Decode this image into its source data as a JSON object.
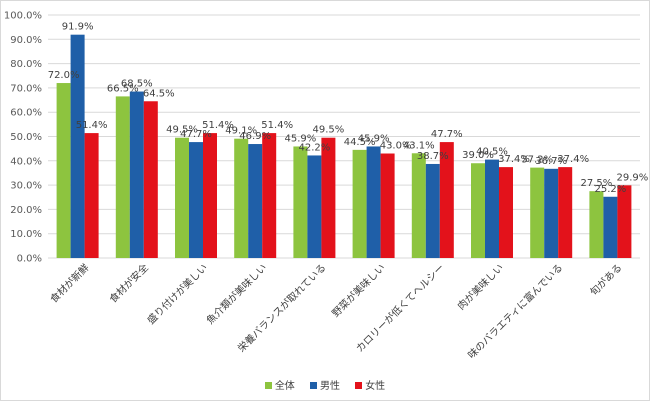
{
  "chart_data": {
    "type": "bar",
    "categories": [
      "食材が新鮮",
      "食材が安全",
      "盛り付けが美しい",
      "魚介類が美味しい",
      "栄養バランスが取れている",
      "野菜が美味しい",
      "カロリーが低くてヘルシー",
      "肉が美味しい",
      "味のバラエティに富んでいる",
      "旬がある"
    ],
    "series": [
      {
        "name": "全体",
        "values": [
          72.0,
          66.5,
          49.5,
          49.1,
          45.9,
          44.5,
          43.1,
          39.0,
          37.2,
          27.5
        ],
        "labels": [
          "72.0%",
          "66.5%",
          "49.5%",
          "49.1%",
          "45.9%",
          "44.5%",
          "43.1%",
          "39.0%",
          "37.2%",
          "27.5%"
        ],
        "color": "#8dc43f"
      },
      {
        "name": "男性",
        "values": [
          91.9,
          68.5,
          47.7,
          46.9,
          42.2,
          45.9,
          38.7,
          40.5,
          36.7,
          25.2
        ],
        "labels": [
          "91.9%",
          "68.5%",
          "47.7%",
          "46.9%",
          "42.2%",
          "45.9%",
          "38.7%",
          "40.5%",
          "36.7%",
          "25.2%"
        ],
        "color": "#1f5fa8"
      },
      {
        "name": "女性",
        "values": [
          51.4,
          64.5,
          51.4,
          51.4,
          49.5,
          43.0,
          47.7,
          37.4,
          37.4,
          29.9
        ],
        "labels": [
          "51.4%",
          "64.5%",
          "51.4%",
          "51.4%",
          "49.5%",
          "43.0%",
          "47.7%",
          "37.4%",
          "37.4%",
          "29.9%"
        ],
        "color": "#e3121b"
      }
    ],
    "yticks": [
      "0.0%",
      "10.0%",
      "20.0%",
      "30.0%",
      "40.0%",
      "50.0%",
      "60.0%",
      "70.0%",
      "80.0%",
      "90.0%",
      "100.0%"
    ],
    "ylim": [
      0,
      100
    ],
    "grid": true,
    "legend": "bottom-center",
    "gridColor": "#d9d9d9"
  }
}
